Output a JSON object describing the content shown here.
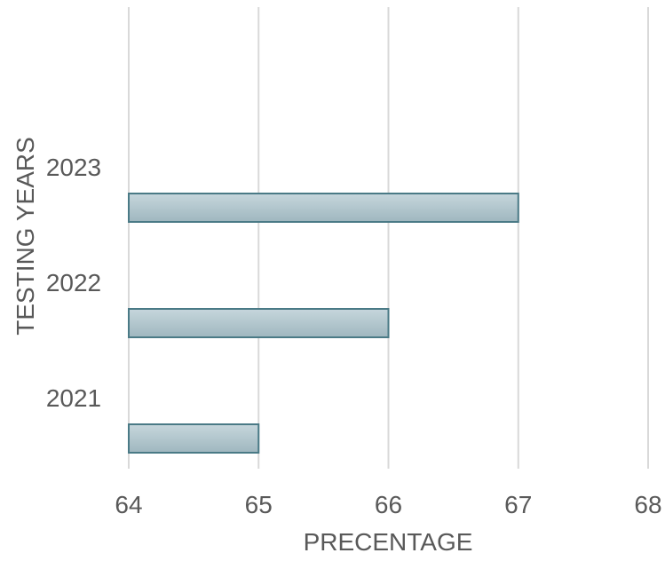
{
  "chart_data": {
    "type": "bar",
    "orientation": "horizontal",
    "categories": [
      "2021",
      "2022",
      "2023"
    ],
    "values": [
      65,
      66,
      67
    ],
    "title": "",
    "xlabel": "PRECENTAGE",
    "ylabel": "TESTING YEARS",
    "xlim": [
      64,
      68
    ],
    "xticks": [
      "64",
      "65",
      "66",
      "67",
      "68"
    ],
    "grid": "vertical",
    "legend": "none",
    "colors": {
      "bar_fill_top": "#c6d6dc",
      "bar_fill_bottom": "#9fb7bf",
      "bar_stroke": "#4a7a86",
      "grid": "#d9d9d9",
      "text": "#595959"
    }
  }
}
